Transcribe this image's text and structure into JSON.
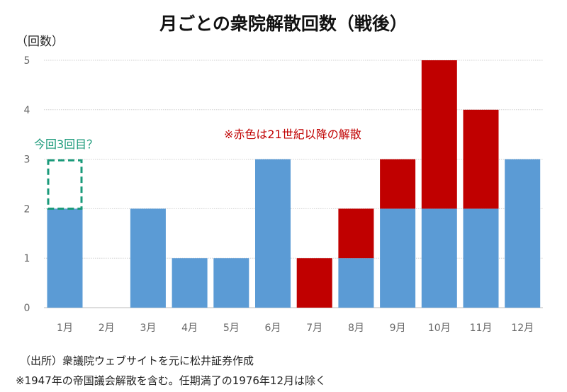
{
  "chart_data": {
    "type": "bar",
    "stacked": true,
    "title": "月ごとの衆院解散回数（戦後）",
    "ylabel": "（回数）",
    "xlabel": "",
    "ylim": [
      0,
      5
    ],
    "yticks": [
      "0",
      "1",
      "2",
      "3",
      "4",
      "5"
    ],
    "grid": true,
    "categories": [
      "1月",
      "2月",
      "3月",
      "4月",
      "5月",
      "6月",
      "7月",
      "8月",
      "9月",
      "10月",
      "11月",
      "12月"
    ],
    "series": [
      {
        "color": "#5b9bd5",
        "values": [
          2,
          0,
          2,
          1,
          1,
          3,
          0,
          1,
          2,
          2,
          2,
          3
        ]
      },
      {
        "color": "#c00000",
        "values": [
          0,
          0,
          0,
          0,
          0,
          0,
          1,
          1,
          1,
          3,
          2,
          0
        ]
      }
    ],
    "annotations": {
      "red_note": "※赤色は21世紀以降の解散",
      "dashed_box": {
        "label": "今回3回目？",
        "category": "1月",
        "from": 2,
        "to": 3,
        "color": "#1a9a7a"
      }
    }
  },
  "source": "（出所）衆議院ウェブサイトを元に松井証券作成",
  "footnote": "※1947年の帝国議会解散を含む。任期満了の1976年12月は除く"
}
